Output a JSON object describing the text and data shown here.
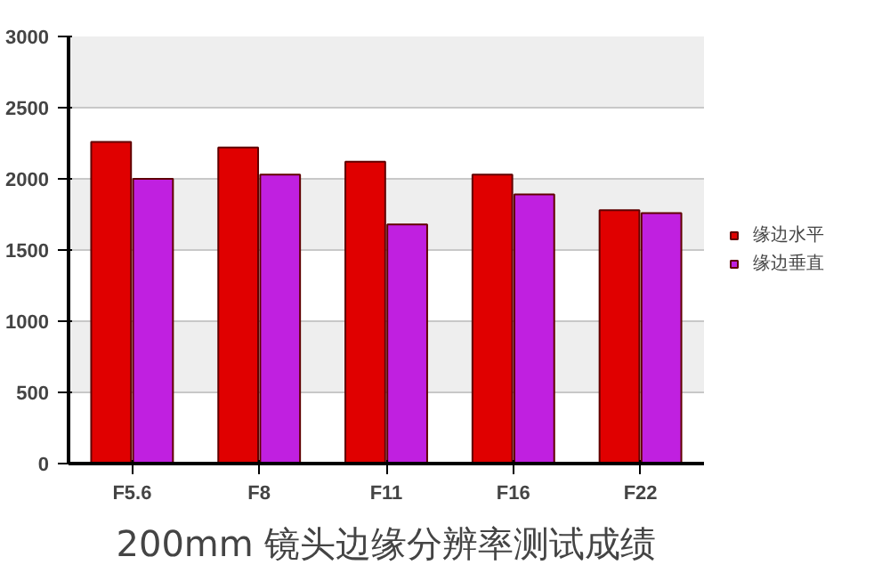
{
  "chart_data": {
    "type": "bar",
    "title": "200mm 镜头边缘分辨率测试成绩",
    "categories": [
      "F5.6",
      "F8",
      "F11",
      "F16",
      "F22"
    ],
    "series": [
      {
        "name": "缘边水平",
        "color": "#e00000",
        "values": [
          2260,
          2220,
          2120,
          2030,
          1780
        ]
      },
      {
        "name": "缘边垂直",
        "color": "#c020e0",
        "values": [
          2000,
          2030,
          1680,
          1890,
          1760
        ]
      }
    ],
    "ylim": [
      0,
      3000
    ],
    "yticks": [
      0,
      500,
      1000,
      1500,
      2000,
      2500,
      3000
    ],
    "grid": "y",
    "legend": "right"
  }
}
